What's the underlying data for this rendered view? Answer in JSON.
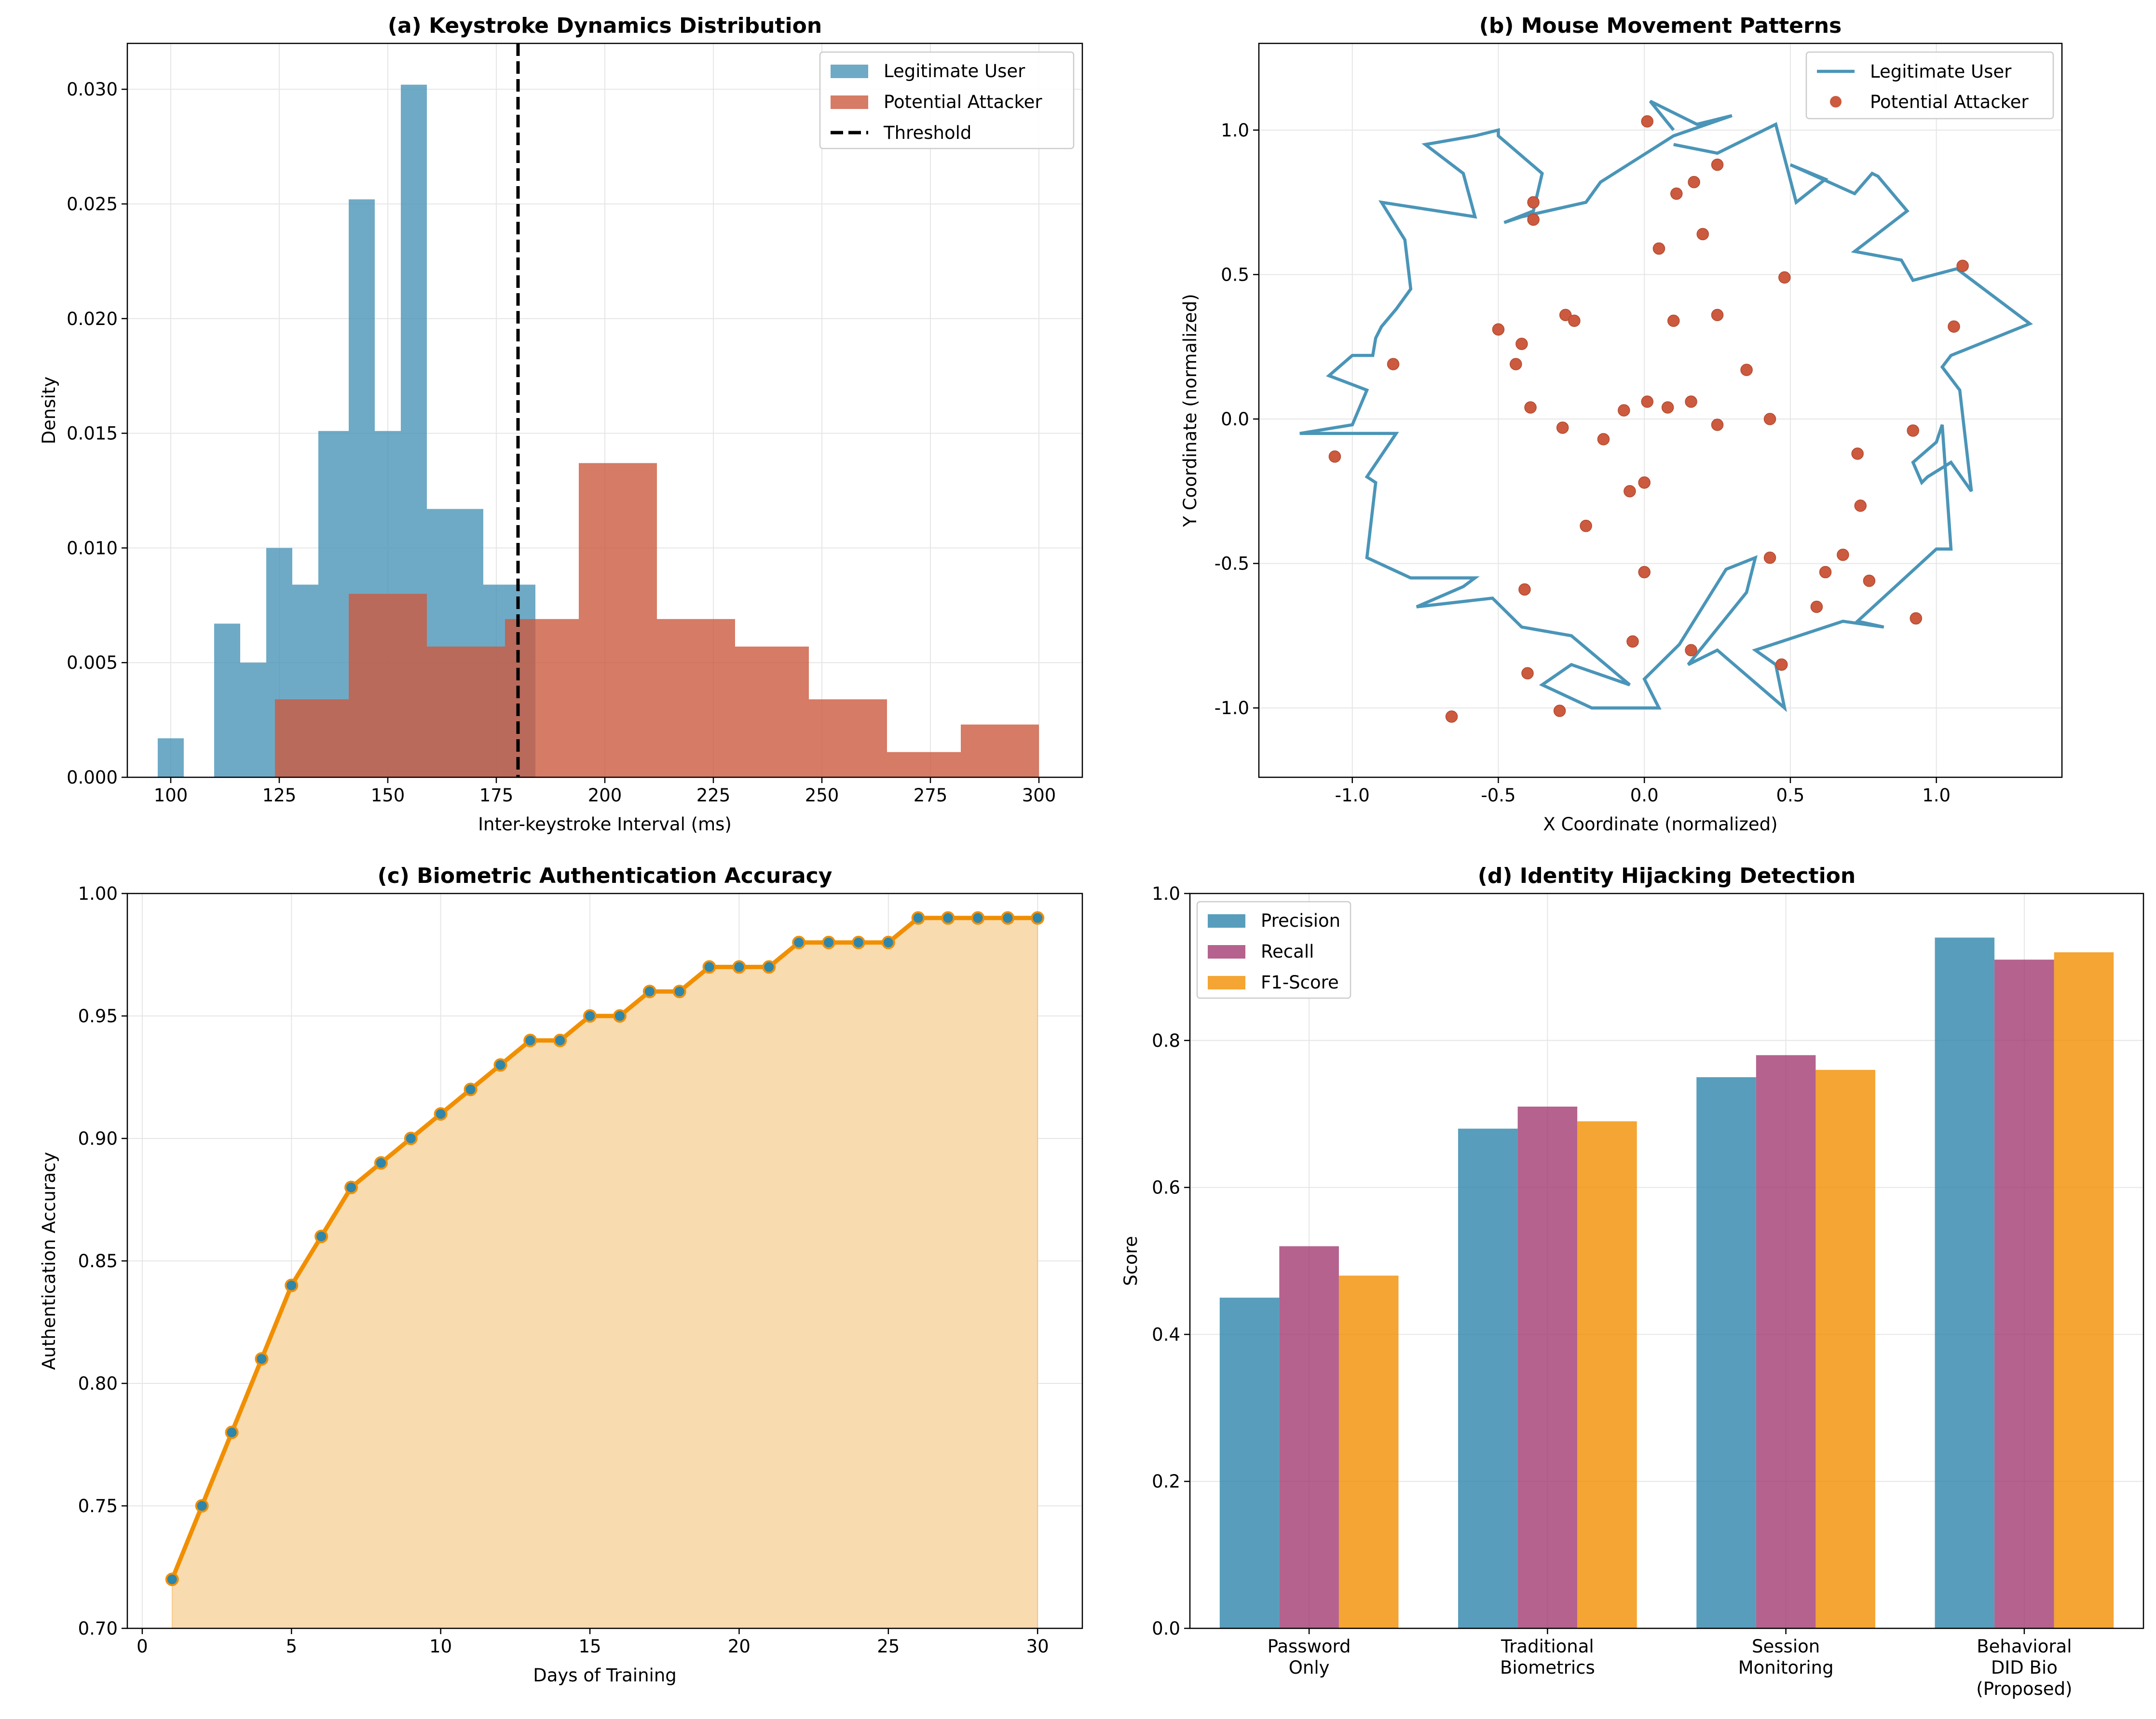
{
  "colors": {
    "legit": "#4a95b8",
    "attacker": "#cc5a3e",
    "threshold": "#000000",
    "accuracy_line": "#f18f01",
    "accuracy_fill": "#f9dbb0",
    "marker_face": "#2e86ab",
    "precision": "#2e86ab",
    "recall": "#a23b72",
    "f1": "#f18f01",
    "grid": "#e6e6e6"
  },
  "chart_data": [
    {
      "type": "histogram",
      "title": "(a) Keystroke Dynamics Distribution",
      "xlabel": "Inter-keystroke Interval (ms)",
      "ylabel": "Density",
      "xlim": [
        90,
        310
      ],
      "ylim": [
        0,
        0.032
      ],
      "xticks": [
        100,
        125,
        150,
        175,
        200,
        225,
        250,
        275,
        300
      ],
      "yticks": [
        "0.000",
        "0.005",
        "0.010",
        "0.015",
        "0.020",
        "0.025",
        "0.030"
      ],
      "grid": true,
      "legend_position": "top-right",
      "series": [
        {
          "name": "Legitimate User",
          "bins": [
            [
              97,
              103,
              0.0017
            ],
            [
              103,
              110,
              0
            ],
            [
              110,
              116,
              0.0067
            ],
            [
              116,
              122,
              0.005
            ],
            [
              122,
              128,
              0.01
            ],
            [
              128,
              134,
              0.0084
            ],
            [
              134,
              141,
              0.0151
            ],
            [
              141,
              147,
              0.0252
            ],
            [
              147,
              153,
              0.0151
            ],
            [
              153,
              159,
              0.0302
            ],
            [
              159,
              165,
              0.0117
            ],
            [
              165,
              172,
              0.0117
            ],
            [
              172,
              178,
              0.0084
            ],
            [
              178,
              184,
              0.0084
            ]
          ]
        },
        {
          "name": "Potential Attacker",
          "bins": [
            [
              124,
              141,
              0.0034
            ],
            [
              141,
              159,
              0.008
            ],
            [
              159,
              177,
              0.0057
            ],
            [
              177,
              194,
              0.0069
            ],
            [
              194,
              212,
              0.0137
            ],
            [
              212,
              230,
              0.0069
            ],
            [
              230,
              247,
              0.0057
            ],
            [
              247,
              265,
              0.0034
            ],
            [
              265,
              282,
              0.0011
            ],
            [
              282,
              300,
              0.0023
            ]
          ]
        }
      ],
      "threshold": {
        "name": "Threshold",
        "x": 180
      }
    },
    {
      "type": "line+scatter",
      "title": "(b) Mouse Movement Patterns",
      "xlabel": "X Coordinate (normalized)",
      "ylabel": "Y Coordinate (normalized)",
      "xlim": [
        -1.32,
        1.43
      ],
      "ylim": [
        -1.24,
        1.3
      ],
      "xticks": [
        "-1.0",
        "-0.5",
        "0.0",
        "0.5",
        "1.0"
      ],
      "yticks": [
        "-1.0",
        "-0.5",
        "0.0",
        "0.5",
        "1.0"
      ],
      "grid": true,
      "legend_position": "top-right",
      "line": {
        "name": "Legitimate User",
        "x": [
          0.1,
          0.25,
          0.45,
          0.52,
          0.62,
          0.5,
          0.72,
          0.78,
          0.8,
          0.9,
          0.72,
          0.88,
          0.92,
          1.07,
          1.32,
          1.05,
          1.02,
          1.08,
          1.12,
          1.05,
          0.97,
          0.95,
          0.92,
          1.0,
          1.02,
          1.05,
          1.0,
          0.73,
          0.82,
          0.68,
          0.62,
          0.38,
          0.45,
          0.48,
          0.25,
          0.15,
          0.35,
          0.38,
          0.28,
          0.12,
          0.0,
          0.05,
          0.0,
          -0.18,
          -0.35,
          -0.25,
          -0.05,
          -0.25,
          -0.42,
          -0.52,
          -0.78,
          -0.62,
          -0.58,
          -0.8,
          -0.95,
          -0.92,
          -0.95,
          -0.85,
          -1.18,
          -1.0,
          -0.95,
          -1.08,
          -1.0,
          -0.93,
          -0.92,
          -0.9,
          -0.85,
          -0.8,
          -0.82,
          -0.9,
          -0.58,
          -0.62,
          -0.75,
          -0.58,
          -0.5,
          -0.5,
          -0.35,
          -0.38,
          -0.48,
          -0.42,
          -0.2,
          -0.15,
          0.1,
          0.3,
          0.18,
          0.02,
          0.1
        ],
        "y": [
          0.95,
          0.92,
          1.02,
          0.75,
          0.83,
          0.88,
          0.78,
          0.85,
          0.84,
          0.72,
          0.58,
          0.55,
          0.48,
          0.52,
          0.33,
          0.22,
          0.18,
          0.1,
          -0.25,
          -0.15,
          -0.2,
          -0.22,
          -0.15,
          -0.08,
          -0.02,
          -0.45,
          -0.45,
          -0.7,
          -0.72,
          -0.7,
          -0.72,
          -0.8,
          -0.85,
          -1.0,
          -0.8,
          -0.85,
          -0.6,
          -0.48,
          -0.52,
          -0.78,
          -0.9,
          -1.0,
          -1.0,
          -1.0,
          -0.92,
          -0.85,
          -0.92,
          -0.75,
          -0.72,
          -0.62,
          -0.65,
          -0.58,
          -0.55,
          -0.55,
          -0.48,
          -0.22,
          -0.2,
          -0.05,
          -0.05,
          -0.02,
          0.1,
          0.15,
          0.22,
          0.22,
          0.28,
          0.32,
          0.38,
          0.45,
          0.62,
          0.75,
          0.7,
          0.85,
          0.95,
          0.98,
          1.0,
          0.98,
          0.85,
          0.72,
          0.68,
          0.7,
          0.75,
          0.82,
          0.98,
          1.05,
          1.02,
          1.1,
          1.0
        ]
      },
      "scatter": {
        "name": "Potential Attacker",
        "x": [
          0.01,
          0.25,
          0.17,
          0.11,
          -0.38,
          -0.38,
          0.2,
          0.05,
          0.48,
          1.09,
          -0.27,
          -0.24,
          0.1,
          0.25,
          1.06,
          -0.5,
          -0.42,
          -0.44,
          -0.86,
          0.35,
          -0.39,
          -0.07,
          0.01,
          0.16,
          0.08,
          0.43,
          -0.28,
          0.25,
          -0.14,
          -1.06,
          0.92,
          0.73,
          0.0,
          -0.05,
          0.74,
          -0.2,
          0.68,
          0.43,
          0.62,
          0.77,
          -0.41,
          0.0,
          0.59,
          0.93,
          -0.04,
          0.16,
          0.47,
          -0.4,
          -0.66,
          -0.29
        ],
        "y": [
          1.03,
          0.88,
          0.82,
          0.78,
          0.75,
          0.69,
          0.64,
          0.59,
          0.49,
          0.53,
          0.36,
          0.34,
          0.34,
          0.36,
          0.32,
          0.31,
          0.26,
          0.19,
          0.19,
          0.17,
          0.04,
          0.03,
          0.06,
          0.06,
          0.04,
          0.0,
          -0.03,
          -0.02,
          -0.07,
          -0.13,
          -0.04,
          -0.12,
          -0.22,
          -0.25,
          -0.3,
          -0.37,
          -0.47,
          -0.48,
          -0.53,
          -0.56,
          -0.59,
          -0.53,
          -0.65,
          -0.69,
          -0.77,
          -0.8,
          -0.85,
          -0.88,
          -1.03,
          -1.01
        ]
      }
    },
    {
      "type": "area",
      "title": "(c) Biometric Authentication Accuracy",
      "xlabel": "Days of Training",
      "ylabel": "Authentication Accuracy",
      "xlim": [
        -0.5,
        31.5
      ],
      "ylim": [
        0.7,
        1.0
      ],
      "xticks": [
        "0",
        "5",
        "10",
        "15",
        "20",
        "25",
        "30"
      ],
      "yticks": [
        "0.70",
        "0.75",
        "0.80",
        "0.85",
        "0.90",
        "0.95",
        "1.00"
      ],
      "grid": true,
      "x": [
        1,
        2,
        3,
        4,
        5,
        6,
        7,
        8,
        9,
        10,
        11,
        12,
        13,
        14,
        15,
        16,
        17,
        18,
        19,
        20,
        21,
        22,
        23,
        24,
        25,
        26,
        27,
        28,
        29,
        30
      ],
      "y": [
        0.72,
        0.75,
        0.78,
        0.81,
        0.84,
        0.86,
        0.88,
        0.89,
        0.9,
        0.91,
        0.92,
        0.93,
        0.94,
        0.94,
        0.95,
        0.95,
        0.96,
        0.96,
        0.97,
        0.97,
        0.97,
        0.98,
        0.98,
        0.98,
        0.98,
        0.99,
        0.99,
        0.99,
        0.99,
        0.99
      ]
    },
    {
      "type": "bar",
      "title": "(d) Identity Hijacking Detection",
      "ylabel": "Score",
      "ylim": [
        0,
        1.0
      ],
      "yticks": [
        "0.0",
        "0.2",
        "0.4",
        "0.6",
        "0.8",
        "1.0"
      ],
      "grid": true,
      "legend_position": "top-left",
      "categories": [
        [
          "Password",
          "Only"
        ],
        [
          "Traditional",
          "Biometrics"
        ],
        [
          "Session",
          "Monitoring"
        ],
        [
          "Behavioral",
          "DID Bio",
          "(Proposed)"
        ]
      ],
      "series": [
        {
          "name": "Precision",
          "values": [
            0.45,
            0.68,
            0.75,
            0.94
          ]
        },
        {
          "name": "Recall",
          "values": [
            0.52,
            0.71,
            0.78,
            0.91
          ]
        },
        {
          "name": "F1-Score",
          "values": [
            0.48,
            0.69,
            0.76,
            0.92
          ]
        }
      ]
    }
  ]
}
